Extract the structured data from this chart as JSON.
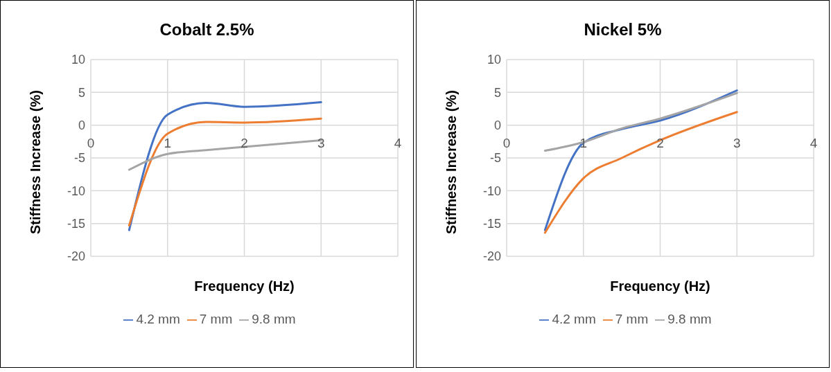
{
  "chart_data": [
    {
      "type": "line",
      "title": "Cobalt 2.5%",
      "xlabel": "Frequency (Hz)",
      "ylabel": "Stiffness Increase (%)",
      "x": [
        0.5,
        1,
        1.5,
        2,
        3
      ],
      "series": [
        {
          "name": "4.2 mm",
          "color": "#4472c4",
          "values": [
            -16,
            1.6,
            3.4,
            2.8,
            3.5
          ]
        },
        {
          "name": "7 mm",
          "color": "#ed7d31",
          "values": [
            -15.3,
            -1.3,
            0.5,
            0.4,
            1.0
          ]
        },
        {
          "name": "9.8 mm",
          "color": "#a5a5a5",
          "values": [
            -6.8,
            -4.4,
            -3.8,
            -3.3,
            -2.3
          ]
        }
      ],
      "xlim": [
        0,
        4
      ],
      "xticks": [
        0,
        1,
        2,
        3,
        4
      ],
      "ylim": [
        -20,
        10
      ],
      "yticks": [
        -20,
        -15,
        -10,
        -5,
        0,
        5,
        10
      ],
      "grid": true,
      "legend": "bottom",
      "marker": "none",
      "line_style": "solid"
    },
    {
      "type": "line",
      "title": "Nickel 5%",
      "xlabel": "Frequency (Hz)",
      "ylabel": "Stiffness Increase (%)",
      "x": [
        0.5,
        1,
        1.5,
        2,
        3
      ],
      "series": [
        {
          "name": "4.2 mm",
          "color": "#4472c4",
          "values": [
            -16,
            -2.7,
            -0.6,
            0.7,
            5.3
          ]
        },
        {
          "name": "7 mm",
          "color": "#ed7d31",
          "values": [
            -16.4,
            -8.1,
            -5.0,
            -2.3,
            2.0
          ]
        },
        {
          "name": "9.8 mm",
          "color": "#a5a5a5",
          "values": [
            -3.9,
            -2.6,
            -0.5,
            1.0,
            4.9
          ]
        }
      ],
      "xlim": [
        0,
        4
      ],
      "xticks": [
        0,
        1,
        2,
        3,
        4
      ],
      "ylim": [
        -20,
        10
      ],
      "yticks": [
        -20,
        -15,
        -10,
        -5,
        0,
        5,
        10
      ],
      "grid": true,
      "legend": "bottom",
      "marker": "none",
      "line_style": "solid"
    }
  ]
}
